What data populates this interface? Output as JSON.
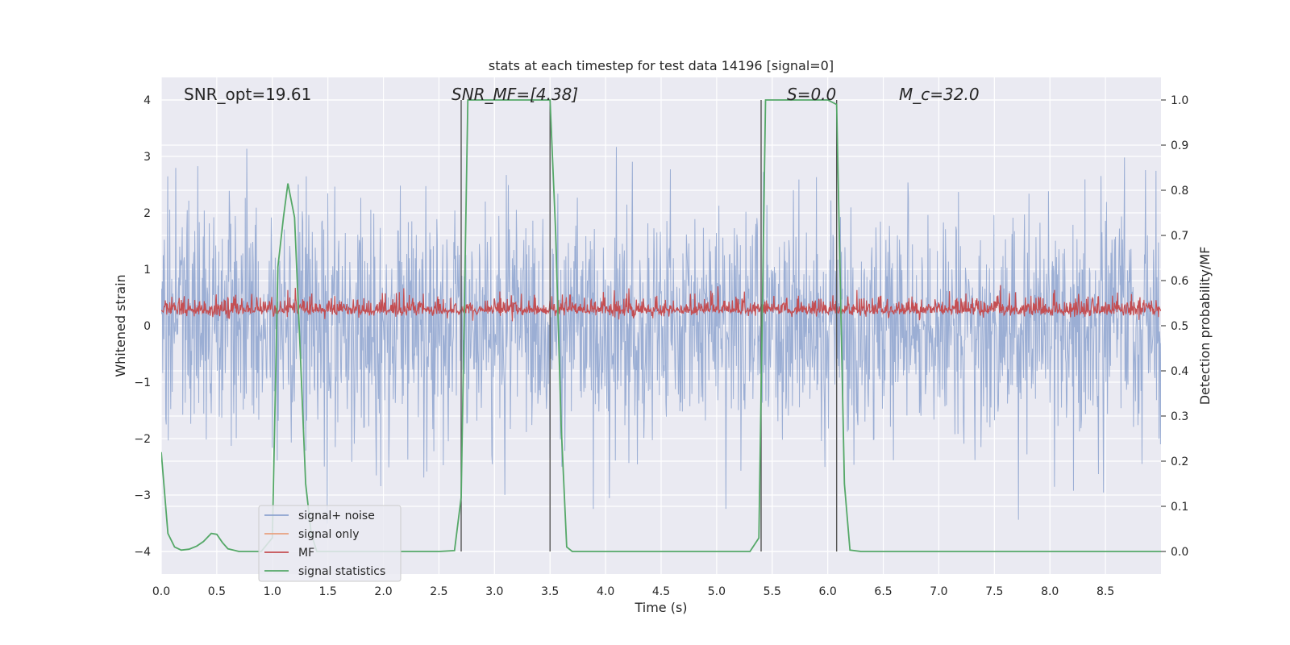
{
  "chart_data": {
    "type": "line",
    "title": "stats at each timestep for test data 14196 [signal=0]",
    "xlabel": "Time (s)",
    "ylabel_left": "Whitened strain",
    "ylabel_right": "Detection probability/MF",
    "xlim": [
      0.0,
      9.0
    ],
    "ylim_left": [
      -4.4,
      4.4
    ],
    "ylim_right": [
      -0.05,
      1.05
    ],
    "x_ticks": [
      0.0,
      0.5,
      1.0,
      1.5,
      2.0,
      2.5,
      3.0,
      3.5,
      4.0,
      4.5,
      5.0,
      5.5,
      6.0,
      6.5,
      7.0,
      7.5,
      8.0,
      8.5
    ],
    "x_tick_labels": [
      "0.0",
      "0.5",
      "1.0",
      "1.5",
      "2.0",
      "2.5",
      "3.0",
      "3.5",
      "4.0",
      "4.5",
      "5.0",
      "5.5",
      "6.0",
      "6.5",
      "7.0",
      "7.5",
      "8.0",
      "8.5"
    ],
    "y_left_ticks": [
      -4,
      -3,
      -2,
      -1,
      0,
      1,
      2,
      3,
      4
    ],
    "y_left_tick_labels": [
      "−4",
      "−3",
      "−2",
      "−1",
      "0",
      "1",
      "2",
      "3",
      "4"
    ],
    "y_right_ticks": [
      0.0,
      0.1,
      0.2,
      0.3,
      0.4,
      0.5,
      0.6,
      0.7,
      0.8,
      0.9,
      1.0
    ],
    "y_right_tick_labels": [
      "0.0",
      "0.1",
      "0.2",
      "0.3",
      "0.4",
      "0.5",
      "0.6",
      "0.7",
      "0.8",
      "0.9",
      "1.0"
    ],
    "annotations": [
      {
        "label": "SNR_opt=19.61",
        "x": 0.2
      },
      {
        "label": "SNR_MF=[4.38]",
        "x": 2.6
      },
      {
        "label": "S=0.0",
        "x": 5.6
      },
      {
        "label": "M_c=32.0",
        "x": 6.6
      }
    ],
    "vertical_lines": [
      2.7,
      3.5,
      5.4,
      6.08
    ],
    "legend": {
      "location": "lower-left",
      "entries": [
        {
          "name": "signal+ noise",
          "color": "#8da3cf"
        },
        {
          "name": "signal only",
          "color": "#e8a17f"
        },
        {
          "name": "MF",
          "color": "#c44e52"
        },
        {
          "name": "signal statistics",
          "color": "#55a868"
        }
      ]
    },
    "series": [
      {
        "name": "signal statistics",
        "axis": "right",
        "color": "#55a868",
        "x": [
          0.0,
          0.06,
          0.12,
          0.18,
          0.25,
          0.32,
          0.38,
          0.45,
          0.5,
          0.55,
          0.6,
          0.7,
          0.8,
          0.9,
          1.0,
          1.05,
          1.1,
          1.14,
          1.2,
          1.25,
          1.3,
          1.35,
          1.4,
          1.5,
          2.0,
          2.5,
          2.64,
          2.7,
          2.76,
          3.0,
          3.3,
          3.5,
          3.55,
          3.6,
          3.65,
          3.7,
          4.0,
          4.5,
          5.0,
          5.3,
          5.38,
          5.44,
          5.5,
          5.8,
          6.0,
          6.08,
          6.15,
          6.2,
          6.3,
          7.0,
          8.0,
          9.0
        ],
        "y": [
          0.22,
          0.04,
          0.01,
          0.003,
          0.005,
          0.012,
          0.022,
          0.04,
          0.038,
          0.02,
          0.006,
          0.0,
          0.0,
          0.0,
          0.03,
          0.63,
          0.74,
          0.815,
          0.74,
          0.45,
          0.15,
          0.04,
          0.0,
          0.0,
          0.0,
          0.0,
          0.002,
          0.12,
          1.0,
          1.0,
          1.0,
          1.0,
          0.71,
          0.28,
          0.01,
          0.0,
          0.0,
          0.0,
          0.0,
          0.0,
          0.03,
          1.0,
          1.0,
          1.0,
          1.0,
          0.99,
          0.15,
          0.003,
          0.0,
          0.0,
          0.0,
          0.0
        ]
      },
      {
        "name": "signal+ noise",
        "axis": "left",
        "color": "#8da3cf",
        "synthetic_noise": {
          "seed": 14196,
          "samples": 2000,
          "sigma": 1.0,
          "clip": [
            -4.0,
            4.0
          ]
        }
      },
      {
        "name": "MF",
        "axis": "right",
        "color": "#c44e52",
        "synthetic_noise": {
          "seed": 9001,
          "samples": 2000,
          "mean": 0.535,
          "sigma": 0.018,
          "clip": [
            0.5,
            0.59
          ]
        }
      }
    ]
  }
}
